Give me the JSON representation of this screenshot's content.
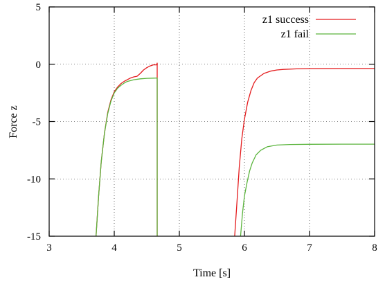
{
  "chart_data": {
    "type": "line",
    "title": "",
    "xlabel": "Time [s]",
    "ylabel": "Force z",
    "xlim": [
      3,
      8
    ],
    "ylim": [
      -15,
      5
    ],
    "xticks": [
      3,
      4,
      5,
      6,
      7,
      8
    ],
    "yticks": [
      5,
      0,
      -5,
      -10,
      -15
    ],
    "grid": true,
    "legend_position": "top-right",
    "series": [
      {
        "name": "z1 success",
        "color": "#e41a1c",
        "x": [
          3.72,
          3.76,
          3.8,
          3.85,
          3.9,
          3.95,
          4.0,
          4.05,
          4.1,
          4.15,
          4.2,
          4.25,
          4.3,
          4.35,
          4.4,
          4.45,
          4.5,
          4.55,
          4.6,
          4.65,
          4.66,
          4.66,
          null,
          5.85,
          5.88,
          5.92,
          5.96,
          6.0,
          6.05,
          6.1,
          6.15,
          6.2,
          6.3,
          6.4,
          6.5,
          6.6,
          6.8,
          7.0,
          7.5,
          8.0
        ],
        "y": [
          -15,
          -11.5,
          -8.5,
          -6,
          -4.2,
          -3.1,
          -2.4,
          -2.0,
          -1.7,
          -1.5,
          -1.35,
          -1.2,
          -1.1,
          -1.05,
          -0.8,
          -0.5,
          -0.3,
          -0.15,
          -0.05,
          -0.05,
          0.1,
          -15,
          null,
          -15,
          -12.5,
          -9,
          -6.5,
          -4.8,
          -3.3,
          -2.3,
          -1.6,
          -1.2,
          -0.8,
          -0.6,
          -0.5,
          -0.45,
          -0.4,
          -0.38,
          -0.37,
          -0.37
        ]
      },
      {
        "name": "z1 fail",
        "color": "#5ab43c",
        "x": [
          3.72,
          3.76,
          3.8,
          3.85,
          3.9,
          3.95,
          4.0,
          4.05,
          4.1,
          4.15,
          4.2,
          4.3,
          4.4,
          4.5,
          4.6,
          4.66,
          4.66,
          null,
          5.94,
          5.97,
          6.0,
          6.04,
          6.08,
          6.12,
          6.18,
          6.25,
          6.35,
          6.5,
          6.7,
          7.0,
          7.5,
          8.0
        ],
        "y": [
          -15,
          -11.5,
          -8.5,
          -6,
          -4.3,
          -3.2,
          -2.5,
          -2.1,
          -1.85,
          -1.65,
          -1.5,
          -1.35,
          -1.27,
          -1.23,
          -1.21,
          -1.2,
          -15,
          null,
          -15,
          -13,
          -11.5,
          -10.3,
          -9.3,
          -8.6,
          -7.9,
          -7.5,
          -7.2,
          -7.05,
          -7.0,
          -6.98,
          -6.97,
          -6.97
        ]
      }
    ]
  }
}
